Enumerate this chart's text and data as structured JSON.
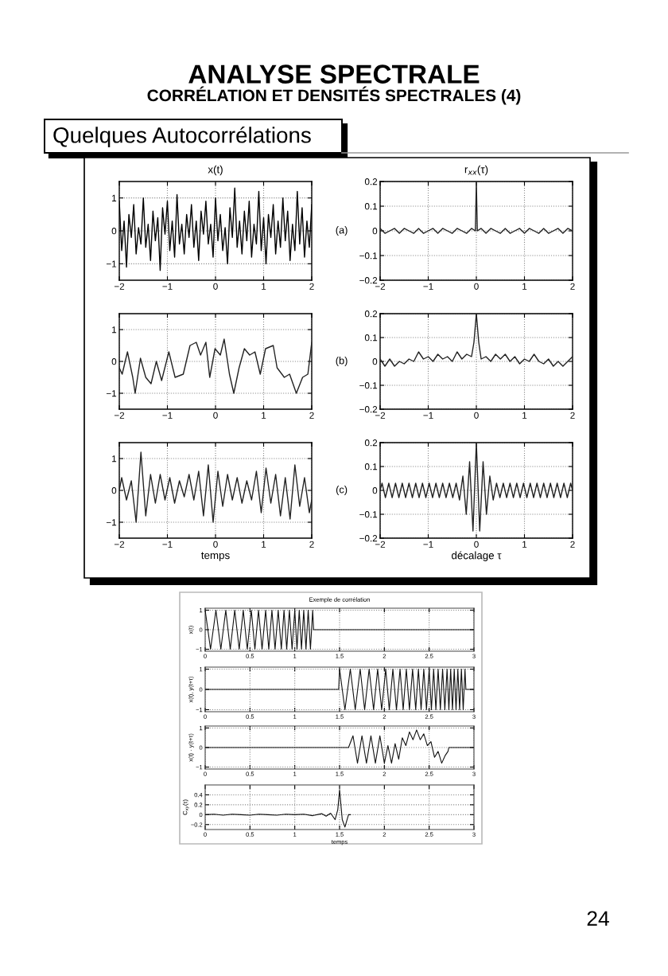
{
  "chart_data": [
    {
      "type": "line",
      "title": "x(t)",
      "annotations": [
        "ANALYSE SPECTRALE",
        "CORRÉLATION ET DENSITÉS SPECTRALES (4)",
        "Quelques Autocorrélations",
        "24"
      ],
      "xlim": [
        -2,
        2
      ],
      "xticks": [
        -2,
        -1,
        0,
        1,
        2
      ],
      "ylim": [
        -1.5,
        1.5
      ],
      "yticks": [
        -1,
        0,
        1
      ],
      "grid": true,
      "series": [
        {
          "color": "#000000",
          "x": [
            -2,
            -1.95,
            -1.9,
            -1.85,
            -1.8,
            -1.75,
            -1.7,
            -1.65,
            -1.6,
            -1.55,
            -1.5,
            -1.45,
            -1.4,
            -1.35,
            -1.3,
            -1.25,
            -1.2,
            -1.15,
            -1.1,
            -1.05,
            -1,
            -0.95,
            -0.9,
            -0.85,
            -0.8,
            -0.75,
            -0.7,
            -0.65,
            -0.6,
            -0.55,
            -0.5,
            -0.45,
            -0.4,
            -0.35,
            -0.3,
            -0.25,
            -0.2,
            -0.15,
            -0.1,
            -0.05,
            0,
            0.05,
            0.1,
            0.15,
            0.2,
            0.25,
            0.3,
            0.35,
            0.4,
            0.45,
            0.5,
            0.55,
            0.6,
            0.65,
            0.7,
            0.75,
            0.8,
            0.85,
            0.9,
            0.95,
            1,
            1.05,
            1.1,
            1.15,
            1.2,
            1.25,
            1.3,
            1.35,
            1.4,
            1.45,
            1.5,
            1.55,
            1.6,
            1.65,
            1.7,
            1.75,
            1.8,
            1.85,
            1.9,
            1.95,
            2
          ],
          "values": [
            0.9,
            -0.6,
            0.3,
            -1.1,
            0.5,
            -0.2,
            0.8,
            -0.7,
            0.1,
            -0.4,
            1.0,
            -0.5,
            0.2,
            -0.9,
            0.6,
            -0.3,
            0.4,
            -1.2,
            0.7,
            -0.1,
            0.9,
            -0.6,
            0.3,
            -0.8,
            1.1,
            -0.4,
            0.2,
            -0.7,
            0.5,
            -0.2,
            0.8,
            -0.5,
            0.3,
            -0.9,
            0.6,
            -0.1,
            0.9,
            -0.4,
            0.2,
            -0.8,
            1.0,
            -0.3,
            0.5,
            -0.6,
            0.1,
            -1.0,
            0.7,
            -0.2,
            1.3,
            -0.5,
            0.3,
            -0.7,
            0.6,
            -0.3,
            0.9,
            -0.8,
            0.2,
            -0.4,
            1.2,
            -0.6,
            0.4,
            -1.0,
            0.5,
            -0.2,
            0.8,
            -0.7,
            0.3,
            -0.5,
            1.0,
            -0.3,
            0.6,
            -0.9,
            0.2,
            -0.6,
            1.2,
            -0.4,
            0.7,
            -0.8,
            0.3,
            -0.5,
            0.8
          ]
        }
      ]
    },
    {
      "type": "line",
      "title": "r$_{xx}$(τ)",
      "annotations": [
        "(a)"
      ],
      "xlim": [
        -2,
        2
      ],
      "xticks": [
        -2,
        -1,
        0,
        1,
        2
      ],
      "ylim": [
        -0.2,
        0.2
      ],
      "yticks": [
        -0.2,
        -0.1,
        0,
        0.1,
        0.2
      ],
      "grid": true,
      "series": [
        {
          "color": "#222222",
          "x": [
            -2,
            -1.9,
            -1.8,
            -1.7,
            -1.6,
            -1.5,
            -1.4,
            -1.3,
            -1.2,
            -1.1,
            -1,
            -0.9,
            -0.8,
            -0.7,
            -0.6,
            -0.5,
            -0.4,
            -0.3,
            -0.2,
            -0.1,
            -0.02,
            0,
            0.02,
            0.1,
            0.2,
            0.3,
            0.4,
            0.5,
            0.6,
            0.7,
            0.8,
            0.9,
            1,
            1.1,
            1.2,
            1.3,
            1.4,
            1.5,
            1.6,
            1.7,
            1.8,
            1.9,
            2
          ],
          "values": [
            0.01,
            -0.01,
            0,
            0.01,
            -0.01,
            0.01,
            0,
            -0.01,
            0.01,
            -0.01,
            0,
            0.01,
            -0.01,
            0.01,
            0,
            -0.01,
            0.01,
            0,
            -0.01,
            0.01,
            0,
            0.2,
            0,
            0.01,
            -0.01,
            0.01,
            0,
            -0.01,
            0.01,
            -0.01,
            0,
            0.01,
            -0.01,
            0.01,
            0,
            -0.01,
            0.01,
            -0.01,
            0,
            0.01,
            -0.01,
            0.01,
            0
          ]
        }
      ]
    },
    {
      "type": "line",
      "xlim": [
        -2,
        2
      ],
      "xticks": [
        -2,
        -1,
        0,
        1,
        2
      ],
      "ylim": [
        -1.5,
        1.5
      ],
      "yticks": [
        -1,
        0,
        1
      ],
      "grid": true,
      "series": [
        {
          "color": "#222222",
          "x": [
            -2,
            -1.94,
            -1.83,
            -1.72,
            -1.67,
            -1.56,
            -1.45,
            -1.34,
            -1.23,
            -1.12,
            -0.97,
            -0.84,
            -0.67,
            -0.53,
            -0.4,
            -0.31,
            -0.2,
            -0.12,
            -0.01,
            0.1,
            0.18,
            0.29,
            0.38,
            0.49,
            0.6,
            0.71,
            0.82,
            0.93,
            1.04,
            1.2,
            1.28,
            1.43,
            1.54,
            1.68,
            1.81,
            1.92,
            2
          ],
          "values": [
            -0.2,
            -0.4,
            0.3,
            -0.5,
            -1.0,
            0.1,
            -0.5,
            -0.7,
            0,
            -0.6,
            0.3,
            -0.5,
            -0.4,
            0.5,
            0.6,
            0.2,
            0.6,
            -0.5,
            0.4,
            0.2,
            0.7,
            -0.4,
            -1.0,
            -0.2,
            0.4,
            0.2,
            0.3,
            -0.4,
            0.4,
            0.5,
            -0.2,
            -0.5,
            -0.4,
            -1.0,
            -0.5,
            -0.4,
            0.6
          ]
        }
      ]
    },
    {
      "type": "line",
      "annotations": [
        "(b)"
      ],
      "xlim": [
        -2,
        2
      ],
      "xticks": [
        -2,
        -1,
        0,
        1,
        2
      ],
      "ylim": [
        -0.2,
        0.2
      ],
      "yticks": [
        -0.2,
        -0.1,
        0,
        0.1,
        0.2
      ],
      "grid": true,
      "series": [
        {
          "color": "#222222",
          "x": [
            -2,
            -1.9,
            -1.8,
            -1.7,
            -1.6,
            -1.5,
            -1.4,
            -1.3,
            -1.2,
            -1.1,
            -1,
            -0.9,
            -0.8,
            -0.7,
            -0.6,
            -0.5,
            -0.4,
            -0.3,
            -0.2,
            -0.1,
            -0.05,
            0,
            0.05,
            0.1,
            0.2,
            0.3,
            0.4,
            0.5,
            0.6,
            0.7,
            0.8,
            0.9,
            1,
            1.1,
            1.2,
            1.3,
            1.4,
            1.5,
            1.6,
            1.7,
            1.8,
            1.9,
            2
          ],
          "values": [
            0.01,
            -0.02,
            0.01,
            -0.02,
            0,
            -0.01,
            0.01,
            0,
            0.04,
            0.01,
            0.02,
            0,
            0.03,
            0.01,
            0.02,
            0,
            0.04,
            0.01,
            0.03,
            0.02,
            0.08,
            0.2,
            0.08,
            0.01,
            0.02,
            0,
            0.03,
            0.01,
            0.03,
            0,
            0.02,
            -0.01,
            0.01,
            0,
            0.03,
            0,
            -0.01,
            0.01,
            -0.02,
            0,
            -0.02,
            0,
            0.02
          ]
        }
      ]
    },
    {
      "type": "line",
      "xlabel": "temps",
      "xlim": [
        -2,
        2
      ],
      "xticks": [
        -2,
        -1,
        0,
        1,
        2
      ],
      "ylim": [
        -1.5,
        1.5
      ],
      "yticks": [
        -1,
        0,
        1
      ],
      "grid": true,
      "series": [
        {
          "color": "#222222",
          "x": [
            -2,
            -1.95,
            -1.85,
            -1.75,
            -1.65,
            -1.55,
            -1.45,
            -1.35,
            -1.25,
            -1.15,
            -1.05,
            -0.95,
            -0.85,
            -0.75,
            -0.65,
            -0.55,
            -0.45,
            -0.35,
            -0.25,
            -0.15,
            -0.05,
            0.05,
            0.15,
            0.25,
            0.35,
            0.45,
            0.55,
            0.65,
            0.75,
            0.85,
            0.95,
            1.05,
            1.15,
            1.25,
            1.35,
            1.45,
            1.55,
            1.65,
            1.75,
            1.85,
            1.95,
            2
          ],
          "values": [
            0,
            0.4,
            -0.3,
            0.3,
            -1.0,
            1.2,
            -0.8,
            0.5,
            -0.4,
            0.5,
            -0.3,
            0.4,
            -0.4,
            0.3,
            -0.2,
            0.5,
            -0.3,
            0.6,
            -0.8,
            0.8,
            -1.0,
            0.6,
            -0.5,
            0.5,
            -0.3,
            0.4,
            -0.4,
            0.3,
            -0.3,
            0.6,
            -0.7,
            0.7,
            -0.4,
            0.5,
            -0.8,
            0.4,
            -0.9,
            0.8,
            -0.5,
            0.4,
            -0.7,
            -0.3
          ]
        }
      ]
    },
    {
      "type": "line",
      "xlabel": "décalage τ",
      "annotations": [
        "(c)"
      ],
      "xlim": [
        -2,
        2
      ],
      "xticks": [
        -2,
        -1,
        0,
        1,
        2
      ],
      "ylim": [
        -0.2,
        0.2
      ],
      "yticks": [
        -0.2,
        -0.1,
        0,
        0.1,
        0.2
      ],
      "grid": true,
      "series": [
        {
          "color": "#222222",
          "x": [
            -2,
            -1.96,
            -1.89,
            -1.82,
            -1.75,
            -1.68,
            -1.61,
            -1.54,
            -1.47,
            -1.4,
            -1.33,
            -1.26,
            -1.19,
            -1.12,
            -1.05,
            -0.98,
            -0.91,
            -0.84,
            -0.77,
            -0.7,
            -0.63,
            -0.56,
            -0.49,
            -0.42,
            -0.35,
            -0.28,
            -0.21,
            -0.14,
            -0.07,
            0,
            0.07,
            0.14,
            0.21,
            0.28,
            0.35,
            0.42,
            0.49,
            0.56,
            0.63,
            0.7,
            0.77,
            0.84,
            0.91,
            0.98,
            1.05,
            1.12,
            1.19,
            1.26,
            1.33,
            1.4,
            1.47,
            1.54,
            1.61,
            1.68,
            1.75,
            1.82,
            1.89,
            1.96,
            2
          ],
          "values": [
            0,
            0.03,
            -0.03,
            0.03,
            -0.03,
            0.03,
            -0.03,
            0.03,
            -0.03,
            0.03,
            -0.03,
            0.03,
            -0.03,
            0.03,
            -0.03,
            0.03,
            -0.03,
            0.03,
            -0.03,
            0.03,
            -0.03,
            0.03,
            -0.03,
            0.03,
            -0.04,
            0.06,
            -0.1,
            0.12,
            -0.17,
            0.2,
            -0.17,
            0.12,
            -0.1,
            0.06,
            -0.04,
            0.03,
            -0.03,
            0.03,
            -0.03,
            0.03,
            -0.03,
            0.03,
            -0.03,
            0.03,
            -0.03,
            0.03,
            -0.03,
            0.03,
            -0.03,
            0.03,
            -0.03,
            0.03,
            -0.03,
            0.03,
            -0.03,
            0.03,
            -0.03,
            0.03,
            0
          ]
        }
      ]
    },
    {
      "type": "line",
      "title": "Exemple de corrélation",
      "ylabel": "x(t)",
      "xlim": [
        0,
        3
      ],
      "xticks": [
        0,
        0.5,
        1,
        1.5,
        2,
        2.5,
        3
      ],
      "ylim": [
        -1.1,
        1.1
      ],
      "yticks": [
        -1,
        0,
        1
      ],
      "grid": true,
      "series": [
        {
          "color": "#111111",
          "x": [
            0,
            0.06,
            0.12,
            0.175,
            0.23,
            0.28,
            0.33,
            0.38,
            0.425,
            0.47,
            0.515,
            0.555,
            0.595,
            0.635,
            0.675,
            0.71,
            0.745,
            0.78,
            0.815,
            0.85,
            0.88,
            0.91,
            0.94,
            0.97,
            1.0,
            1.025,
            1.05,
            1.075,
            1.1,
            1.125,
            1.15,
            1.175,
            1.2,
            1.21,
            3
          ],
          "values": [
            1,
            -1,
            1,
            -1,
            1,
            -1,
            1,
            -1,
            1,
            -1,
            1,
            -1,
            1,
            -1,
            1,
            -1,
            1,
            -1,
            1,
            -1,
            1,
            -1,
            1,
            -1,
            1,
            -1,
            1,
            -1,
            1,
            -1,
            1,
            -1,
            1,
            0,
            0
          ]
        }
      ]
    },
    {
      "type": "line",
      "ylabel": "x(t), y(t+τ)",
      "xlim": [
        0,
        3
      ],
      "xticks": [
        0,
        0.5,
        1,
        1.5,
        2,
        2.5,
        3
      ],
      "ylim": [
        -1.1,
        1.1
      ],
      "yticks": [
        -1,
        0,
        1
      ],
      "grid": true,
      "series": [
        {
          "color": "#111111",
          "x": [
            0,
            1.49,
            1.5,
            1.56,
            1.62,
            1.675,
            1.73,
            1.78,
            1.83,
            1.88,
            1.925,
            1.97,
            2.015,
            2.055,
            2.095,
            2.135,
            2.175,
            2.21,
            2.245,
            2.28,
            2.315,
            2.35,
            2.38,
            2.41,
            2.44,
            2.47,
            2.5,
            2.525,
            2.55,
            2.575,
            2.6,
            2.625,
            2.65,
            2.675,
            2.7,
            2.72,
            2.74,
            2.76,
            2.78,
            2.8,
            2.82,
            2.84,
            2.86,
            2.88,
            2.9,
            2.91,
            3
          ],
          "values": [
            0,
            0,
            1,
            -1,
            1,
            -1,
            1,
            -1,
            1,
            -1,
            1,
            -1,
            1,
            -1,
            1,
            -1,
            1,
            -1,
            1,
            -1,
            1,
            -1,
            1,
            -1,
            1,
            -1,
            1,
            -1,
            1,
            -1,
            1,
            -1,
            1,
            -1,
            1,
            -1,
            1,
            -1,
            1,
            -1,
            1,
            -1,
            1,
            -1,
            1,
            0,
            0
          ]
        }
      ]
    },
    {
      "type": "line",
      "ylabel": "x(t) · y(t+τ)",
      "xlim": [
        0,
        3
      ],
      "xticks": [
        0,
        0.5,
        1,
        1.5,
        2,
        2.5,
        3
      ],
      "ylim": [
        -1.1,
        1.1
      ],
      "yticks": [
        -1,
        0,
        1
      ],
      "grid": true,
      "series": [
        {
          "color": "#111111",
          "x": [
            0,
            1.6,
            1.65,
            1.7,
            1.75,
            1.8,
            1.85,
            1.9,
            1.95,
            2.0,
            2.04,
            2.08,
            2.12,
            2.16,
            2.2,
            2.24,
            2.28,
            2.32,
            2.36,
            2.4,
            2.44,
            2.48,
            2.52,
            2.56,
            2.6,
            2.64,
            2.68,
            2.71,
            2.72,
            3
          ],
          "values": [
            0,
            0,
            0.6,
            -0.8,
            0.6,
            -0.8,
            0.6,
            -0.8,
            0.6,
            -0.8,
            0.1,
            -0.8,
            0.2,
            -0.6,
            0.5,
            0.1,
            0.8,
            0.4,
            0.9,
            0.4,
            0.7,
            0.1,
            0.3,
            -0.5,
            -0.2,
            -0.8,
            -0.4,
            -0.2,
            0,
            0
          ]
        }
      ]
    },
    {
      "type": "line",
      "xlabel": "temps",
      "ylabel": "C$_{xy}$(τ)",
      "xlim": [
        0,
        3
      ],
      "xticks": [
        0,
        0.5,
        1,
        1.5,
        2,
        2.5,
        3
      ],
      "ylim": [
        -0.3,
        0.6
      ],
      "yticks": [
        -0.2,
        0,
        0.2,
        0.4
      ],
      "grid": true,
      "series": [
        {
          "color": "#111111",
          "x": [
            0,
            0.1,
            0.2,
            0.3,
            0.4,
            0.5,
            0.6,
            0.7,
            0.8,
            0.9,
            1.0,
            1.1,
            1.2,
            1.3,
            1.35,
            1.4,
            1.45,
            1.48,
            1.5,
            1.53,
            1.56,
            1.6,
            1.62
          ],
          "values": [
            0,
            0.01,
            -0.01,
            0.01,
            0,
            -0.01,
            0.01,
            0,
            -0.01,
            0.01,
            0,
            0.01,
            -0.02,
            0.02,
            -0.03,
            0.03,
            -0.1,
            0.1,
            0.5,
            -0.1,
            -0.25,
            0,
            0
          ]
        }
      ]
    }
  ]
}
